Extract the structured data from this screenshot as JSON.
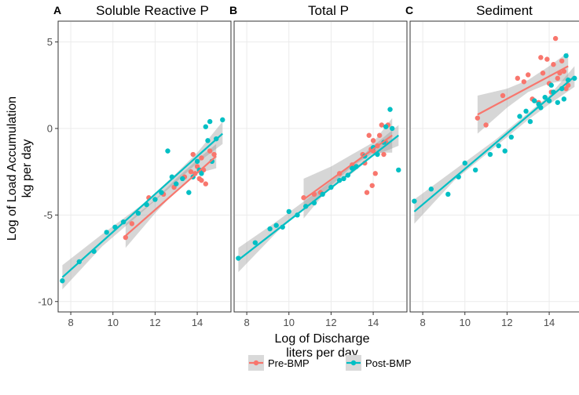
{
  "chart_data": {
    "type": "scatter",
    "xlabel": [
      "Log of Discharge",
      "liters per day"
    ],
    "ylabel": [
      "Log of Load Accumulation",
      "kg per day"
    ],
    "xlim": [
      7.4,
      15.6
    ],
    "ylim": [
      -10.6,
      6.2
    ],
    "xticks": [
      8,
      10,
      12,
      14
    ],
    "yticks": [
      -10,
      -5,
      0,
      5
    ],
    "legend": {
      "position": "bottom",
      "items": [
        {
          "name": "Pre-BMP",
          "color": "#F8766D"
        },
        {
          "name": "Post-BMP",
          "color": "#00BFC4"
        }
      ]
    },
    "panels": [
      {
        "letter": "A",
        "title": "Soluble Reactive P",
        "series": [
          {
            "name": "Pre-BMP",
            "color": "#F8766D",
            "points": [
              [
                10.6,
                -6.3
              ],
              [
                10.9,
                -5.5
              ],
              [
                11.7,
                -4.0
              ],
              [
                12.4,
                -3.8
              ],
              [
                12.9,
                -3.4
              ],
              [
                13.4,
                -2.8
              ],
              [
                13.7,
                -2.5
              ],
              [
                13.8,
                -1.5
              ],
              [
                13.9,
                -2.6
              ],
              [
                14.0,
                -2.2
              ],
              [
                14.1,
                -2.9
              ],
              [
                14.2,
                -3.0
              ],
              [
                14.3,
                -2.4
              ],
              [
                14.4,
                -3.2
              ],
              [
                14.6,
                -1.3
              ],
              [
                14.8,
                -1.5
              ],
              [
                14.2,
                -1.7
              ]
            ],
            "fit": [
              [
                10.6,
                -6.2
              ],
              [
                14.9,
                -1.6
              ]
            ],
            "band": [
              [
                10.6,
                -6.9,
                -5.5
              ],
              [
                12.0,
                -4.9,
                -4.1
              ],
              [
                13.0,
                -3.6,
                -2.9
              ],
              [
                14.0,
                -2.6,
                -1.8
              ],
              [
                14.9,
                -2.3,
                -0.9
              ]
            ]
          },
          {
            "name": "Post-BMP",
            "color": "#00BFC4",
            "points": [
              [
                7.6,
                -8.8
              ],
              [
                8.4,
                -7.7
              ],
              [
                9.1,
                -7.1
              ],
              [
                9.7,
                -6.0
              ],
              [
                10.1,
                -5.7
              ],
              [
                10.5,
                -5.4
              ],
              [
                11.2,
                -4.9
              ],
              [
                11.6,
                -4.4
              ],
              [
                12.0,
                -4.1
              ],
              [
                12.3,
                -3.7
              ],
              [
                12.6,
                -1.3
              ],
              [
                12.8,
                -2.8
              ],
              [
                13.0,
                -3.2
              ],
              [
                13.3,
                -2.9
              ],
              [
                13.6,
                -3.7
              ],
              [
                13.8,
                -2.8
              ],
              [
                14.0,
                -1.9
              ],
              [
                14.2,
                -2.6
              ],
              [
                14.4,
                0.1
              ],
              [
                14.6,
                0.4
              ],
              [
                14.7,
                -1.9
              ],
              [
                14.9,
                -0.6
              ],
              [
                15.2,
                0.5
              ],
              [
                14.5,
                -0.7
              ],
              [
                14.1,
                -2.4
              ]
            ],
            "fit": [
              [
                7.6,
                -8.6
              ],
              [
                15.2,
                -0.3
              ]
            ],
            "band": [
              [
                7.6,
                -9.3,
                -7.9
              ],
              [
                9.5,
                -6.8,
                -6.1
              ],
              [
                11.5,
                -4.7,
                -4.3
              ],
              [
                13.0,
                -3.1,
                -2.6
              ],
              [
                14.0,
                -2.0,
                -1.4
              ],
              [
                15.2,
                -0.9,
                0.4
              ]
            ]
          }
        ]
      },
      {
        "letter": "B",
        "title": "Total P",
        "series": [
          {
            "name": "Pre-BMP",
            "color": "#F8766D",
            "points": [
              [
                10.7,
                -4.0
              ],
              [
                11.2,
                -3.8
              ],
              [
                11.5,
                -3.7
              ],
              [
                12.4,
                -2.6
              ],
              [
                13.0,
                -2.1
              ],
              [
                13.5,
                -1.5
              ],
              [
                13.6,
                -2.0
              ],
              [
                13.7,
                -3.7
              ],
              [
                13.8,
                -0.4
              ],
              [
                13.9,
                -1.2
              ],
              [
                14.0,
                -0.7
              ],
              [
                14.1,
                -2.6
              ],
              [
                14.2,
                -1.0
              ],
              [
                14.3,
                -0.4
              ],
              [
                14.4,
                0.2
              ],
              [
                14.5,
                -1.5
              ],
              [
                14.6,
                -0.8
              ],
              [
                14.7,
                0.2
              ],
              [
                14.0,
                -1.3
              ],
              [
                13.95,
                -3.3
              ]
            ],
            "fit": [
              [
                10.7,
                -4.1
              ],
              [
                14.9,
                -0.4
              ]
            ],
            "band": [
              [
                10.7,
                -5.2,
                -2.9
              ],
              [
                12.0,
                -3.3,
                -2.2
              ],
              [
                13.0,
                -2.2,
                -1.5
              ],
              [
                14.0,
                -1.4,
                -0.8
              ],
              [
                14.9,
                -1.4,
                0.6
              ]
            ]
          },
          {
            "name": "Post-BMP",
            "color": "#00BFC4",
            "points": [
              [
                7.6,
                -7.5
              ],
              [
                8.4,
                -6.6
              ],
              [
                9.1,
                -5.8
              ],
              [
                9.4,
                -5.6
              ],
              [
                9.7,
                -5.7
              ],
              [
                10.0,
                -4.8
              ],
              [
                10.4,
                -5.0
              ],
              [
                10.8,
                -4.5
              ],
              [
                11.2,
                -4.3
              ],
              [
                11.6,
                -3.8
              ],
              [
                12.0,
                -3.4
              ],
              [
                12.4,
                -3.0
              ],
              [
                12.8,
                -2.7
              ],
              [
                13.2,
                -2.2
              ],
              [
                13.6,
                -1.6
              ],
              [
                14.0,
                -1.1
              ],
              [
                14.2,
                -1.5
              ],
              [
                14.5,
                -0.8
              ],
              [
                14.8,
                1.1
              ],
              [
                14.9,
                0.0
              ],
              [
                15.2,
                -2.4
              ],
              [
                14.6,
                0.1
              ],
              [
                13.0,
                -2.3
              ],
              [
                12.6,
                -2.9
              ]
            ],
            "fit": [
              [
                7.6,
                -7.6
              ],
              [
                15.2,
                -0.4
              ]
            ],
            "band": [
              [
                7.6,
                -8.3,
                -6.9
              ],
              [
                9.5,
                -5.9,
                -5.3
              ],
              [
                11.5,
                -3.9,
                -3.5
              ],
              [
                13.0,
                -2.6,
                -2.1
              ],
              [
                14.0,
                -1.6,
                -1.0
              ],
              [
                15.2,
                -1.0,
                0.2
              ]
            ]
          }
        ]
      },
      {
        "letter": "C",
        "title": "Sediment",
        "series": [
          {
            "name": "Pre-BMP",
            "color": "#F8766D",
            "points": [
              [
                10.6,
                0.6
              ],
              [
                11.0,
                0.2
              ],
              [
                11.8,
                1.9
              ],
              [
                12.5,
                2.9
              ],
              [
                12.8,
                2.7
              ],
              [
                13.0,
                3.1
              ],
              [
                13.2,
                1.7
              ],
              [
                13.5,
                1.5
              ],
              [
                13.6,
                4.1
              ],
              [
                13.7,
                3.2
              ],
              [
                13.9,
                4.0
              ],
              [
                14.0,
                2.6
              ],
              [
                14.1,
                2.1
              ],
              [
                14.2,
                3.7
              ],
              [
                14.3,
                5.2
              ],
              [
                14.4,
                2.9
              ],
              [
                14.5,
                3.2
              ],
              [
                14.6,
                3.9
              ],
              [
                14.8,
                2.3
              ],
              [
                14.9,
                2.5
              ],
              [
                14.7,
                3.3
              ]
            ],
            "fit": [
              [
                10.6,
                0.8
              ],
              [
                14.9,
                3.6
              ]
            ],
            "band": [
              [
                10.6,
                -0.3,
                1.9
              ],
              [
                12.0,
                1.2,
                2.3
              ],
              [
                13.0,
                2.1,
                2.8
              ],
              [
                14.0,
                2.6,
                3.6
              ],
              [
                14.9,
                2.8,
                4.4
              ]
            ]
          },
          {
            "name": "Post-BMP",
            "color": "#00BFC4",
            "points": [
              [
                7.6,
                -4.2
              ],
              [
                8.4,
                -3.5
              ],
              [
                9.2,
                -3.8
              ],
              [
                9.7,
                -2.8
              ],
              [
                10.0,
                -2.0
              ],
              [
                10.5,
                -2.4
              ],
              [
                11.2,
                -1.5
              ],
              [
                11.6,
                -1.0
              ],
              [
                11.9,
                -1.3
              ],
              [
                12.2,
                -0.5
              ],
              [
                12.6,
                0.7
              ],
              [
                12.9,
                1.0
              ],
              [
                13.1,
                0.4
              ],
              [
                13.3,
                1.6
              ],
              [
                13.6,
                1.2
              ],
              [
                13.8,
                1.8
              ],
              [
                14.0,
                1.6
              ],
              [
                14.2,
                2.1
              ],
              [
                14.4,
                1.5
              ],
              [
                14.6,
                2.3
              ],
              [
                14.8,
                4.2
              ],
              [
                14.9,
                2.8
              ],
              [
                15.2,
                2.9
              ],
              [
                14.1,
                2.5
              ],
              [
                13.5,
                1.4
              ],
              [
                14.7,
                1.7
              ]
            ],
            "fit": [
              [
                7.6,
                -4.8
              ],
              [
                15.2,
                3.0
              ]
            ],
            "band": [
              [
                7.6,
                -5.5,
                -4.1
              ],
              [
                9.5,
                -3.0,
                -2.4
              ],
              [
                11.5,
                -1.0,
                -0.6
              ],
              [
                13.0,
                0.5,
                0.9
              ],
              [
                14.0,
                1.4,
                1.9
              ],
              [
                15.2,
                2.4,
                3.6
              ]
            ]
          }
        ]
      }
    ]
  }
}
